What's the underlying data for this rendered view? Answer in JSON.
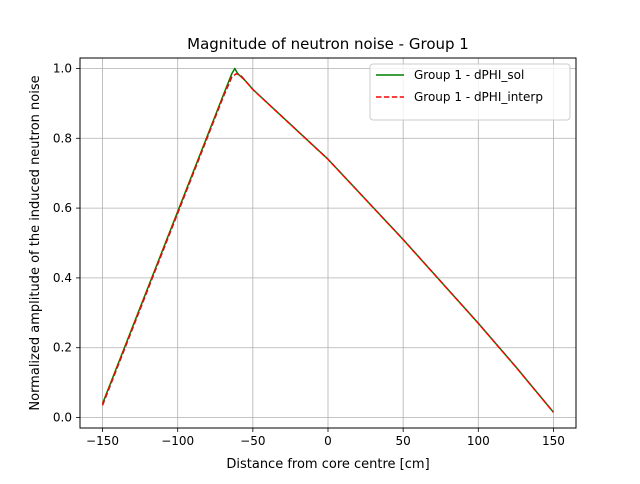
{
  "chart_data": {
    "type": "line",
    "title": "Magnitude of neutron noise - Group 1",
    "xlabel": "Distance from core centre [cm]",
    "ylabel": "Normalized amplitude of the induced neutron noise",
    "xlim": [
      -165,
      165
    ],
    "ylim": [
      -0.03,
      1.03
    ],
    "xticks": [
      -150,
      -100,
      -50,
      0,
      50,
      100,
      150
    ],
    "yticks": [
      0.0,
      0.2,
      0.4,
      0.6,
      0.8,
      1.0
    ],
    "xtick_labels": [
      "−150",
      "−100",
      "−50",
      "0",
      "50",
      "100",
      "150"
    ],
    "ytick_labels": [
      "0.0",
      "0.2",
      "0.4",
      "0.6",
      "0.8",
      "1.0"
    ],
    "grid": true,
    "legend_position": "top-right",
    "series": [
      {
        "name": "Group 1 - dPHI_sol",
        "color": "#008000",
        "style": "solid",
        "x": [
          -150,
          -125,
          -100,
          -80,
          -70,
          -64,
          -62,
          -60,
          -55,
          -50,
          -25,
          0,
          25,
          50,
          75,
          100,
          125,
          150
        ],
        "y": [
          0.04,
          0.315,
          0.59,
          0.81,
          0.92,
          0.985,
          1.0,
          0.985,
          0.965,
          0.94,
          0.84,
          0.74,
          0.625,
          0.51,
          0.39,
          0.27,
          0.145,
          0.015
        ]
      },
      {
        "name": "Group 1 - dPHI_interp",
        "color": "#ff0000",
        "style": "dashed",
        "x": [
          -150,
          -125,
          -100,
          -80,
          -70,
          -64,
          -61,
          -58,
          -55,
          -50,
          -25,
          0,
          25,
          50,
          75,
          100,
          125,
          150
        ],
        "y": [
          0.035,
          0.31,
          0.585,
          0.805,
          0.915,
          0.975,
          0.985,
          0.98,
          0.965,
          0.94,
          0.84,
          0.74,
          0.625,
          0.51,
          0.39,
          0.27,
          0.145,
          0.015
        ]
      }
    ]
  }
}
